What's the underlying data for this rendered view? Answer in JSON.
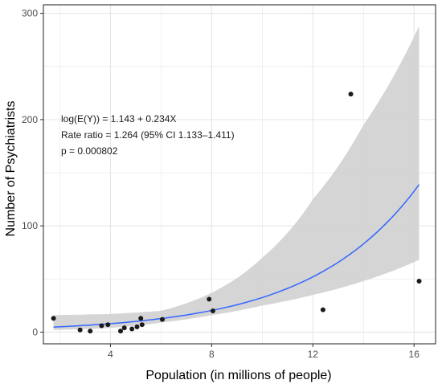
{
  "chart_data": {
    "type": "scatter",
    "xlabel": "Population (in millions of people)",
    "ylabel": "Number of Psychiatrists",
    "xlim": [
      1.35,
      16.85
    ],
    "ylim": [
      -11,
      308
    ],
    "x_ticks": [
      4,
      8,
      12,
      16
    ],
    "y_ticks": [
      0,
      100,
      200,
      300
    ],
    "x_tick_labels": [
      "4",
      "8",
      "12",
      "16"
    ],
    "y_tick_labels": [
      "0",
      "100",
      "200",
      "300"
    ],
    "grid": true,
    "annotations": [
      "log(E(Y)) = 1.143 + 0.234X",
      "Rate ratio = 1.264 (95% CI 1.133–1.411)",
      "p = 0.000802"
    ],
    "points": [
      {
        "x": 1.75,
        "y": 13
      },
      {
        "x": 2.8,
        "y": 2
      },
      {
        "x": 3.2,
        "y": 1
      },
      {
        "x": 3.65,
        "y": 6
      },
      {
        "x": 3.9,
        "y": 7
      },
      {
        "x": 4.4,
        "y": 1
      },
      {
        "x": 4.55,
        "y": 4
      },
      {
        "x": 4.85,
        "y": 3
      },
      {
        "x": 5.05,
        "y": 5
      },
      {
        "x": 5.2,
        "y": 13
      },
      {
        "x": 5.25,
        "y": 7
      },
      {
        "x": 6.05,
        "y": 12
      },
      {
        "x": 7.9,
        "y": 31
      },
      {
        "x": 8.05,
        "y": 20
      },
      {
        "x": 12.4,
        "y": 21
      },
      {
        "x": 13.5,
        "y": 224
      },
      {
        "x": 16.2,
        "y": 48
      }
    ],
    "fit": {
      "intercept": 1.143,
      "slope": 0.234,
      "x_range": [
        1.75,
        16.2
      ],
      "ci_band": [
        {
          "x": 1.75,
          "lower": 2,
          "upper": 16
        },
        {
          "x": 4.0,
          "lower": 4,
          "upper": 17
        },
        {
          "x": 6.0,
          "lower": 9,
          "upper": 20
        },
        {
          "x": 8.0,
          "lower": 16,
          "upper": 37
        },
        {
          "x": 10.0,
          "lower": 25,
          "upper": 70
        },
        {
          "x": 12.0,
          "lower": 35,
          "upper": 125
        },
        {
          "x": 14.0,
          "lower": 48,
          "upper": 195
        },
        {
          "x": 16.2,
          "lower": 68,
          "upper": 288
        }
      ]
    },
    "colors": {
      "fit_line": "#3366ff",
      "ci_band": "#d3d3d3",
      "points": "#1a1a1a",
      "grid": "#e6e6e6",
      "panel_border": "#333333"
    }
  }
}
